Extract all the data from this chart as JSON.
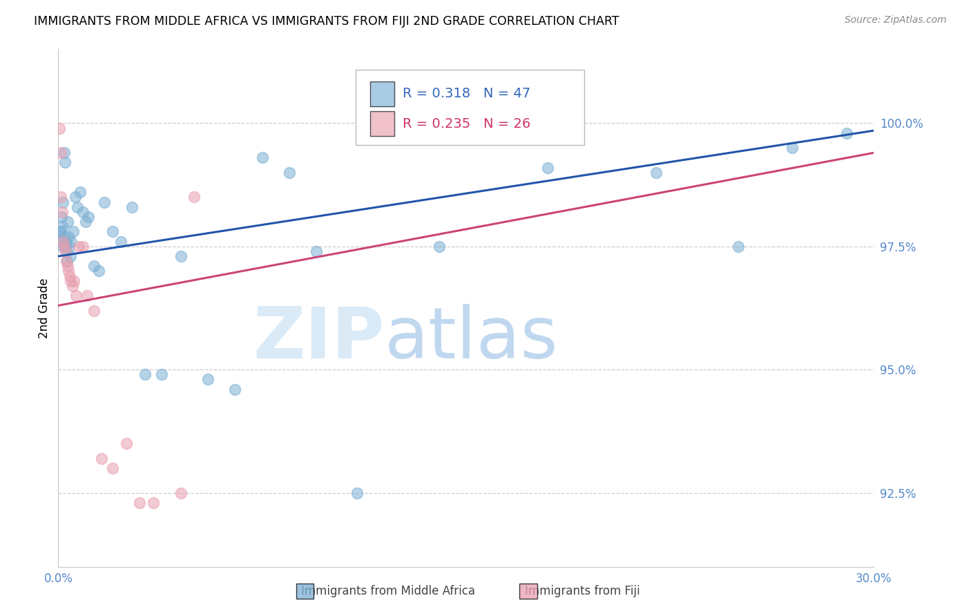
{
  "title": "IMMIGRANTS FROM MIDDLE AFRICA VS IMMIGRANTS FROM FIJI 2ND GRADE CORRELATION CHART",
  "source": "Source: ZipAtlas.com",
  "ylabel": "2nd Grade",
  "yaxis_ticks": [
    92.5,
    95.0,
    97.5,
    100.0
  ],
  "yaxis_labels": [
    "92.5%",
    "95.0%",
    "97.5%",
    "100.0%"
  ],
  "xlim": [
    0.0,
    30.0
  ],
  "ylim": [
    91.0,
    101.5
  ],
  "blue_R": 0.318,
  "blue_N": 47,
  "pink_R": 0.235,
  "pink_N": 26,
  "blue_color": "#7bafd4",
  "pink_color": "#e8a0b0",
  "blue_line_color": "#2255aa",
  "pink_line_color": "#cc4477",
  "legend_label_blue": "Immigrants from Middle Africa",
  "legend_label_pink": "Immigrants from Fiji",
  "blue_line_x0": 0.0,
  "blue_line_y0": 97.3,
  "blue_line_x1": 30.0,
  "blue_line_y1": 99.85,
  "pink_line_x0": 0.0,
  "pink_line_y0": 96.3,
  "pink_line_x1": 30.0,
  "pink_line_y1": 99.4,
  "blue_scatter_x": [
    0.05,
    0.08,
    0.1,
    0.12,
    0.14,
    0.16,
    0.18,
    0.2,
    0.22,
    0.24,
    0.26,
    0.28,
    0.3,
    0.32,
    0.34,
    0.36,
    0.4,
    0.44,
    0.48,
    0.55,
    0.62,
    0.7,
    0.8,
    0.9,
    1.0,
    1.1,
    1.3,
    1.5,
    1.7,
    2.0,
    2.3,
    2.7,
    3.2,
    3.8,
    4.5,
    5.5,
    6.5,
    7.5,
    8.5,
    9.5,
    11.0,
    14.0,
    18.0,
    22.0,
    25.0,
    27.0,
    29.0
  ],
  "blue_scatter_y": [
    97.6,
    97.8,
    97.8,
    98.1,
    97.9,
    98.4,
    97.5,
    97.7,
    99.4,
    99.2,
    97.5,
    97.6,
    97.4,
    97.2,
    98.0,
    97.7,
    97.5,
    97.3,
    97.6,
    97.8,
    98.5,
    98.3,
    98.6,
    98.2,
    98.0,
    98.1,
    97.1,
    97.0,
    98.4,
    97.8,
    97.6,
    98.3,
    94.9,
    94.9,
    97.3,
    94.8,
    94.6,
    99.3,
    99.0,
    97.4,
    92.5,
    97.5,
    99.1,
    99.0,
    97.5,
    99.5,
    99.8
  ],
  "pink_scatter_x": [
    0.05,
    0.08,
    0.1,
    0.14,
    0.18,
    0.22,
    0.26,
    0.3,
    0.34,
    0.38,
    0.42,
    0.46,
    0.52,
    0.58,
    0.65,
    0.75,
    0.9,
    1.05,
    1.3,
    1.6,
    2.0,
    2.5,
    3.0,
    3.5,
    4.5,
    5.0
  ],
  "pink_scatter_y": [
    99.9,
    99.4,
    98.5,
    98.2,
    97.6,
    97.5,
    97.4,
    97.2,
    97.1,
    97.0,
    96.9,
    96.8,
    96.7,
    96.8,
    96.5,
    97.5,
    97.5,
    96.5,
    96.2,
    93.2,
    93.0,
    93.5,
    92.3,
    92.3,
    92.5,
    98.5
  ]
}
